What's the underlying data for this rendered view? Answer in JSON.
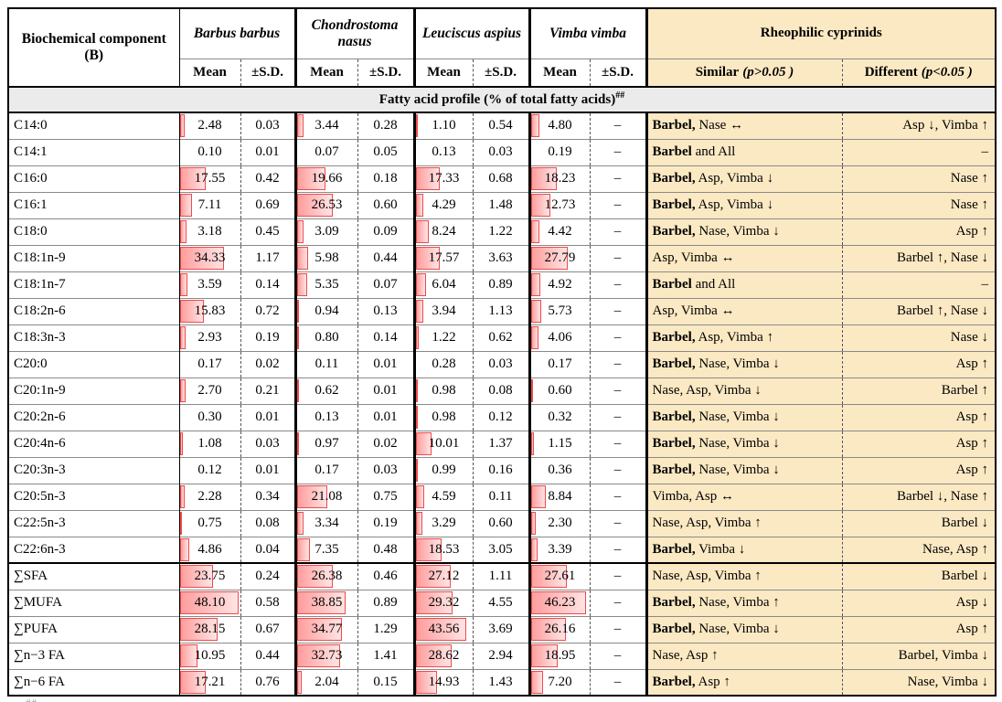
{
  "header": {
    "component_line1": "Biochemical component",
    "component_line2": "(B)",
    "species": [
      "Barbus barbus",
      "Chondrostoma nasus",
      "Leuciscus aspius",
      "Vimba vimba"
    ],
    "mean": "Mean",
    "sd": "±S.D.",
    "group": "Rheophilic cyprinids",
    "similar_label": "Similar",
    "similar_p": "(p>0.05 )",
    "different_label": "Different",
    "different_p": "(p<0.05 )"
  },
  "section": {
    "title": "Fatty acid profile (% of total fatty acids)",
    "sup": "##"
  },
  "footnote_partial": "##",
  "colors": {
    "accent_tan": "#fbe9c3",
    "band_gray": "#ebebeb",
    "bar_border": "#ef4b4b",
    "bar_fill_start": "#ff9d9d",
    "bar_fill_end": "#ffe4e4"
  },
  "rows": [
    {
      "label": "C14:0",
      "b_mean": "2.48",
      "b_sd": "0.03",
      "n_mean": "3.44",
      "n_sd": "0.28",
      "a_mean": "1.10",
      "a_sd": "0.54",
      "v_mean": "4.80",
      "v_sd": "–",
      "similar_bold": "Barbel,",
      "similar_rest": " Nase ↔",
      "different": "Asp ↓, Vimba ↑",
      "thick_top": false
    },
    {
      "label": "C14:1",
      "b_mean": "0.10",
      "b_sd": "0.01",
      "n_mean": "0.07",
      "n_sd": "0.05",
      "a_mean": "0.13",
      "a_sd": "0.03",
      "v_mean": "0.19",
      "v_sd": "–",
      "similar_bold": "Barbel",
      "similar_rest": " and All",
      "different": "–",
      "thick_top": false
    },
    {
      "label": "C16:0",
      "b_mean": "17.55",
      "b_sd": "0.42",
      "n_mean": "19.66",
      "n_sd": "0.18",
      "a_mean": "17.33",
      "a_sd": "0.68",
      "v_mean": "18.23",
      "v_sd": "–",
      "similar_bold": "Barbel,",
      "similar_rest": " Asp, Vimba ↓",
      "different": "Nase ↑",
      "thick_top": false
    },
    {
      "label": "C16:1",
      "b_mean": "7.11",
      "b_sd": "0.69",
      "n_mean": "26.53",
      "n_sd": "0.60",
      "a_mean": "4.29",
      "a_sd": "1.48",
      "v_mean": "12.73",
      "v_sd": "–",
      "similar_bold": "Barbel,",
      "similar_rest": " Asp, Vimba ↓",
      "different": "Nase ↑",
      "thick_top": false
    },
    {
      "label": "C18:0",
      "b_mean": "3.18",
      "b_sd": "0.45",
      "n_mean": "3.09",
      "n_sd": "0.09",
      "a_mean": "8.24",
      "a_sd": "1.22",
      "v_mean": "4.42",
      "v_sd": "–",
      "similar_bold": "Barbel,",
      "similar_rest": " Nase, Vimba ↓",
      "different": "Asp ↑",
      "thick_top": false
    },
    {
      "label": "C18:1n-9",
      "b_mean": "34.33",
      "b_sd": "1.17",
      "n_mean": "5.98",
      "n_sd": "0.44",
      "a_mean": "17.57",
      "a_sd": "3.63",
      "v_mean": "27.79",
      "v_sd": "–",
      "similar_bold": "",
      "similar_rest": "Asp, Vimba ↔",
      "different": "Barbel ↑, Nase ↓",
      "thick_top": false
    },
    {
      "label": "C18:1n-7",
      "b_mean": "3.59",
      "b_sd": "0.14",
      "n_mean": "5.35",
      "n_sd": "0.07",
      "a_mean": "6.04",
      "a_sd": "0.89",
      "v_mean": "4.92",
      "v_sd": "–",
      "similar_bold": "Barbel",
      "similar_rest": " and All",
      "different": "–",
      "thick_top": false
    },
    {
      "label": "C18:2n-6",
      "b_mean": "15.83",
      "b_sd": "0.72",
      "n_mean": "0.94",
      "n_sd": "0.13",
      "a_mean": "3.94",
      "a_sd": "1.13",
      "v_mean": "5.73",
      "v_sd": "–",
      "similar_bold": "",
      "similar_rest": "Asp, Vimba ↔",
      "different": "Barbel ↑, Nase ↓",
      "thick_top": false
    },
    {
      "label": "C18:3n-3",
      "b_mean": "2.93",
      "b_sd": "0.19",
      "n_mean": "0.80",
      "n_sd": "0.14",
      "a_mean": "1.22",
      "a_sd": "0.62",
      "v_mean": "4.06",
      "v_sd": "–",
      "similar_bold": "Barbel,",
      "similar_rest": " Asp, Vimba ↑",
      "different": "Nase ↓",
      "thick_top": false
    },
    {
      "label": "C20:0",
      "b_mean": "0.17",
      "b_sd": "0.02",
      "n_mean": "0.11",
      "n_sd": "0.01",
      "a_mean": "0.28",
      "a_sd": "0.03",
      "v_mean": "0.17",
      "v_sd": "–",
      "similar_bold": "Barbel,",
      "similar_rest": " Nase, Vimba ↓",
      "different": "Asp ↑",
      "thick_top": false
    },
    {
      "label": "C20:1n-9",
      "b_mean": "2.70",
      "b_sd": "0.21",
      "n_mean": "0.62",
      "n_sd": "0.01",
      "a_mean": "0.98",
      "a_sd": "0.08",
      "v_mean": "0.60",
      "v_sd": "–",
      "similar_bold": "",
      "similar_rest": "Nase, Asp, Vimba ↓",
      "different": "Barbel ↑",
      "thick_top": false
    },
    {
      "label": "C20:2n-6",
      "b_mean": "0.30",
      "b_sd": "0.01",
      "n_mean": "0.13",
      "n_sd": "0.01",
      "a_mean": "0.98",
      "a_sd": "0.12",
      "v_mean": "0.32",
      "v_sd": "–",
      "similar_bold": "Barbel,",
      "similar_rest": " Nase, Vimba ↓",
      "different": "Asp ↑",
      "thick_top": false
    },
    {
      "label": "C20:4n-6",
      "b_mean": "1.08",
      "b_sd": "0.03",
      "n_mean": "0.97",
      "n_sd": "0.02",
      "a_mean": "10.01",
      "a_sd": "1.37",
      "v_mean": "1.15",
      "v_sd": "–",
      "similar_bold": "Barbel,",
      "similar_rest": " Nase, Vimba ↓",
      "different": "Asp ↑",
      "thick_top": false
    },
    {
      "label": "C20:3n-3",
      "b_mean": "0.12",
      "b_sd": "0.01",
      "n_mean": "0.17",
      "n_sd": "0.03",
      "a_mean": "0.99",
      "a_sd": "0.16",
      "v_mean": "0.36",
      "v_sd": "–",
      "similar_bold": "Barbel,",
      "similar_rest": " Nase, Vimba ↓",
      "different": "Asp ↑",
      "thick_top": false
    },
    {
      "label": "C20:5n-3",
      "b_mean": "2.28",
      "b_sd": "0.34",
      "n_mean": "21.08",
      "n_sd": "0.75",
      "a_mean": "4.59",
      "a_sd": "0.11",
      "v_mean": "8.84",
      "v_sd": "–",
      "similar_bold": "",
      "similar_rest": "Vimba, Asp ↔",
      "different": "Barbel ↓, Nase ↑",
      "thick_top": false
    },
    {
      "label": "C22:5n-3",
      "b_mean": "0.75",
      "b_sd": "0.08",
      "n_mean": "3.34",
      "n_sd": "0.19",
      "a_mean": "3.29",
      "a_sd": "0.60",
      "v_mean": "2.30",
      "v_sd": "–",
      "similar_bold": "",
      "similar_rest": "Nase, Asp, Vimba ↑",
      "different": "Barbel ↓",
      "thick_top": false
    },
    {
      "label": "C22:6n-3",
      "b_mean": "4.86",
      "b_sd": "0.04",
      "n_mean": "7.35",
      "n_sd": "0.48",
      "a_mean": "18.53",
      "a_sd": "3.05",
      "v_mean": "3.39",
      "v_sd": "–",
      "similar_bold": "Barbel,",
      "similar_rest": " Vimba ↓",
      "different": "Nase, Asp ↑",
      "thick_top": false
    },
    {
      "label": "∑SFA",
      "b_mean": "23.75",
      "b_sd": "0.24",
      "n_mean": "26.38",
      "n_sd": "0.46",
      "a_mean": "27.12",
      "a_sd": "1.11",
      "v_mean": "27.61",
      "v_sd": "–",
      "similar_bold": "",
      "similar_rest": "Nase, Asp, Vimba ↑",
      "different": "Barbel ↓",
      "thick_top": true
    },
    {
      "label": "∑MUFA",
      "b_mean": "48.10",
      "b_sd": "0.58",
      "n_mean": "38.85",
      "n_sd": "0.89",
      "a_mean": "29.32",
      "a_sd": "4.55",
      "v_mean": "46.23",
      "v_sd": "–",
      "similar_bold": "Barbel,",
      "similar_rest": " Nase, Vimba ↑",
      "different": "Asp ↓",
      "thick_top": false
    },
    {
      "label": "∑PUFA",
      "b_mean": "28.15",
      "b_sd": "0.67",
      "n_mean": "34.77",
      "n_sd": "1.29",
      "a_mean": "43.56",
      "a_sd": "3.69",
      "v_mean": "26.16",
      "v_sd": "–",
      "similar_bold": "Barbel,",
      "similar_rest": " Nase, Vimba ↓",
      "different": "Asp ↑",
      "thick_top": false
    },
    {
      "label": "∑n−3 FA",
      "b_mean": "10.95",
      "b_sd": "0.44",
      "n_mean": "32.73",
      "n_sd": "1.41",
      "a_mean": "28.62",
      "a_sd": "2.94",
      "v_mean": "18.95",
      "v_sd": "–",
      "similar_bold": "",
      "similar_rest": "Nase, Asp ↑",
      "different": "Barbel, Vimba ↓",
      "thick_top": false
    },
    {
      "label": "∑n−6 FA",
      "b_mean": "17.21",
      "b_sd": "0.76",
      "n_mean": "2.04",
      "n_sd": "0.15",
      "a_mean": "14.93",
      "a_sd": "1.43",
      "v_mean": "7.20",
      "v_sd": "–",
      "similar_bold": "Barbel,",
      "similar_rest": " Asp ↑",
      "different": "Nase, Vimba ↓",
      "thick_top": false
    }
  ]
}
